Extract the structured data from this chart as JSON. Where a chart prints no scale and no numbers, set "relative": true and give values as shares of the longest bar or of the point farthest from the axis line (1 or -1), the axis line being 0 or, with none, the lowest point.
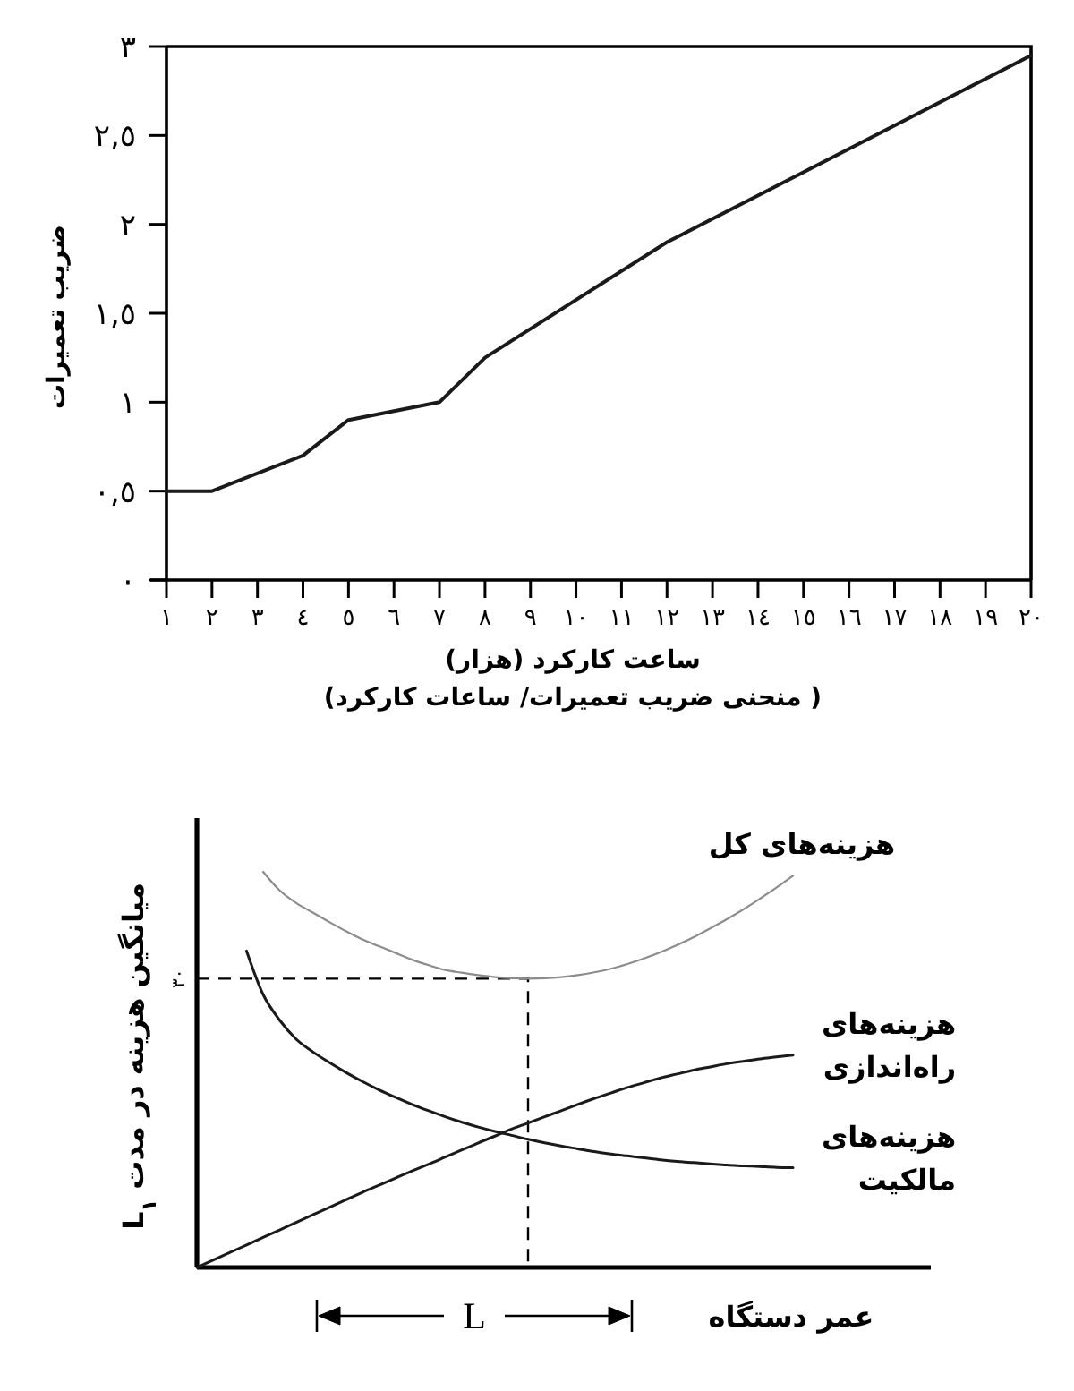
{
  "chart_data": [
    {
      "type": "line",
      "xlabel": "ساعت کارکرد (هزار)",
      "ylabel": "ضریب تعمیرات",
      "annotations": [
        "( منحنی ضریب تعمیرات/ ساعات کارکرد)"
      ],
      "x": [
        1,
        2,
        4,
        5,
        7,
        8,
        12,
        20
      ],
      "values": [
        0.5,
        0.5,
        0.7,
        0.9,
        1,
        1.25,
        1.9,
        2.95
      ],
      "color": "#1a1a1a",
      "xlim": [
        1,
        20
      ],
      "ylim": [
        0,
        3
      ],
      "xticks": [
        {
          "value": 1,
          "label": "١"
        },
        {
          "value": 2,
          "label": "٢"
        },
        {
          "value": 3,
          "label": "٣"
        },
        {
          "value": 4,
          "label": "٤"
        },
        {
          "value": 5,
          "label": "٥"
        },
        {
          "value": 6,
          "label": "٦"
        },
        {
          "value": 7,
          "label": "٧"
        },
        {
          "value": 8,
          "label": "٨"
        },
        {
          "value": 9,
          "label": "٩"
        },
        {
          "value": 10,
          "label": "١٠"
        },
        {
          "value": 11,
          "label": "١١"
        },
        {
          "value": 12,
          "label": "١٢"
        },
        {
          "value": 13,
          "label": "١٣"
        },
        {
          "value": 14,
          "label": "١٤"
        },
        {
          "value": 15,
          "label": "١٥"
        },
        {
          "value": 16,
          "label": "١٦"
        },
        {
          "value": 17,
          "label": "١٧"
        },
        {
          "value": 18,
          "label": "١٨"
        },
        {
          "value": 19,
          "label": "١٩"
        },
        {
          "value": 20,
          "label": "٢٠"
        }
      ],
      "yticks": [
        {
          "value": 0,
          "label": "٠"
        },
        {
          "value": 0.5,
          "label": "٠,٥"
        },
        {
          "value": 1,
          "label": "١"
        },
        {
          "value": 1.5,
          "label": "١,٥"
        },
        {
          "value": 2,
          "label": "٢"
        },
        {
          "value": 2.5,
          "label": "٢,٥"
        },
        {
          "value": 3,
          "label": "٣"
        }
      ]
    },
    {
      "type": "line",
      "relative": true,
      "xlabel": "عمر دستگاه",
      "ylabel": "میانگین هزینه در مدت L$_{١}$",
      "annotations": [
        "L"
      ],
      "categories": [
        null,
        null,
        null,
        null,
        null,
        null,
        null,
        null,
        null,
        null,
        null,
        null,
        null,
        null,
        null,
        null,
        null,
        null,
        null,
        null,
        null,
        null,
        null,
        null,
        null,
        null,
        null,
        null,
        null,
        null,
        null,
        null,
        null,
        null,
        null,
        null,
        null,
        null,
        null,
        null,
        null,
        null,
        null,
        null,
        null
      ],
      "series": [
        {
          "name": "هزینه‌های کل",
          "color": "#8c8c8c",
          "values": [
            null,
            null,
            null,
            null,
            1,
            0.953,
            0.921,
            0.897,
            0.873,
            0.85,
            0.829,
            0.812,
            0.795,
            0.778,
            0.764,
            0.752,
            0.745,
            0.739,
            0.734,
            0.731,
            0.73,
            0.731,
            0.734,
            0.739,
            0.746,
            0.755,
            0.767,
            0.781,
            0.797,
            0.815,
            0.835,
            0.857,
            0.88,
            0.905,
            0.932,
            0.96,
            0.99,
            null,
            null,
            null,
            null,
            null,
            null,
            null,
            null
          ]
        },
        {
          "name": "هزینه‌های راه‌اندازی",
          "color": "#1a1a1a",
          "values": [
            0,
            0.019,
            0.038,
            0.057,
            0.076,
            0.095,
            0.114,
            0.133,
            0.152,
            0.171,
            0.19,
            0.208,
            0.226,
            0.244,
            0.261,
            0.279,
            0.297,
            0.315,
            0.332,
            0.35,
            0.365,
            0.381,
            0.396,
            0.412,
            0.427,
            0.441,
            0.455,
            0.467,
            0.479,
            0.489,
            0.499,
            0.507,
            0.515,
            0.521,
            0.527,
            0.532,
            0.537,
            null,
            null,
            null,
            null,
            null,
            null,
            null,
            null
          ]
        },
        {
          "name": "هزینه‌های مالکیت",
          "color": "#1a1a1a",
          "values": [
            null,
            null,
            null,
            0.8,
            0.69,
            0.625,
            0.577,
            0.545,
            0.518,
            0.493,
            0.47,
            0.449,
            0.43,
            0.412,
            0.396,
            0.381,
            0.367,
            0.355,
            0.344,
            0.334,
            0.324,
            0.315,
            0.307,
            0.3,
            0.293,
            0.287,
            0.282,
            0.277,
            0.272,
            0.268,
            0.265,
            0.262,
            0.259,
            0.257,
            0.255,
            0.253,
            0.252,
            null,
            null,
            null,
            null,
            null,
            null,
            null,
            null
          ]
        }
      ],
      "ref_lines": [
        {
          "axis": "y",
          "value": 0.73,
          "label": "٣٠",
          "line_style": "dashed"
        }
      ]
    }
  ]
}
